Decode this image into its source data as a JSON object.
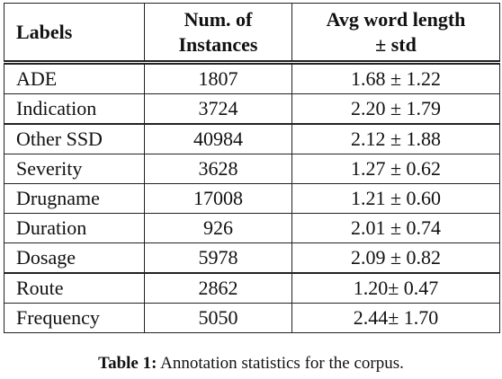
{
  "table": {
    "header": [
      [
        "Labels"
      ],
      [
        "Num. of",
        "Instances"
      ],
      [
        "Avg word length",
        "± std"
      ]
    ],
    "rows": [
      [
        "ADE",
        1807,
        "1.68 ± 1.22"
      ],
      [
        "Indication",
        3724,
        "2.20 ± 1.79"
      ],
      [
        "Other SSD",
        40984,
        "2.12 ± 1.88"
      ],
      [
        "Severity",
        3628,
        "1.27 ± 0.62"
      ],
      [
        "Drugname",
        17008,
        "1.21 ± 0.60"
      ],
      [
        "Duration",
        926,
        "2.01 ± 0.74"
      ],
      [
        "Dosage",
        5978,
        "2.09 ± 0.82"
      ],
      [
        "Route",
        2862,
        "1.20± 0.47"
      ],
      [
        "Frequency",
        5050,
        "2.44± 1.70"
      ]
    ]
  },
  "caption": {
    "label": "Table 1:",
    "text": "Annotation statistics for the corpus."
  }
}
